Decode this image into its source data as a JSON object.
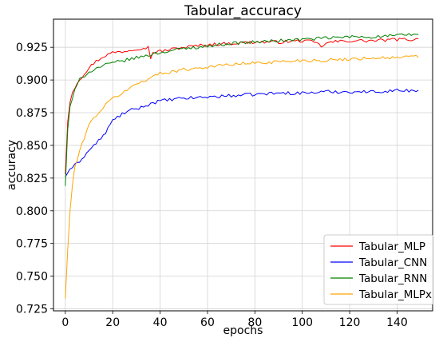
{
  "chart_data": {
    "type": "line",
    "title": "Tabular_accuracy",
    "xlabel": "epochs",
    "ylabel": "accuracy",
    "xlim": [
      -5,
      155
    ],
    "ylim": [
      0.7235,
      0.9465
    ],
    "x_ticks": [
      0,
      20,
      40,
      60,
      80,
      100,
      120,
      140
    ],
    "y_ticks": [
      0.725,
      0.75,
      0.775,
      0.8,
      0.825,
      0.85,
      0.875,
      0.9,
      0.925
    ],
    "grid": true,
    "legend_position": "lower right",
    "epochs": 150,
    "series": [
      {
        "name": "Tabular_MLP",
        "color": "#ff0000",
        "anchors": [
          [
            0,
            0.828
          ],
          [
            1,
            0.868
          ],
          [
            2,
            0.883
          ],
          [
            3,
            0.891
          ],
          [
            5,
            0.898
          ],
          [
            8,
            0.905
          ],
          [
            12,
            0.913
          ],
          [
            16,
            0.918
          ],
          [
            20,
            0.921
          ],
          [
            25,
            0.922
          ],
          [
            30,
            0.924
          ],
          [
            35,
            0.925
          ],
          [
            36,
            0.917
          ],
          [
            37,
            0.921
          ],
          [
            40,
            0.922
          ],
          [
            50,
            0.925
          ],
          [
            60,
            0.927
          ],
          [
            70,
            0.928
          ],
          [
            80,
            0.929
          ],
          [
            90,
            0.929
          ],
          [
            100,
            0.93
          ],
          [
            105,
            0.929
          ],
          [
            108,
            0.926
          ],
          [
            112,
            0.929
          ],
          [
            120,
            0.93
          ],
          [
            130,
            0.93
          ],
          [
            140,
            0.931
          ],
          [
            149,
            0.931
          ]
        ]
      },
      {
        "name": "Tabular_CNN",
        "color": "#0000ff",
        "anchors": [
          [
            0,
            0.826
          ],
          [
            2,
            0.832
          ],
          [
            5,
            0.836
          ],
          [
            8,
            0.842
          ],
          [
            12,
            0.85
          ],
          [
            16,
            0.857
          ],
          [
            18,
            0.863
          ],
          [
            20,
            0.869
          ],
          [
            24,
            0.874
          ],
          [
            28,
            0.877
          ],
          [
            32,
            0.879
          ],
          [
            36,
            0.882
          ],
          [
            40,
            0.884
          ],
          [
            50,
            0.886
          ],
          [
            60,
            0.887
          ],
          [
            70,
            0.888
          ],
          [
            80,
            0.889
          ],
          [
            90,
            0.89
          ],
          [
            100,
            0.89
          ],
          [
            110,
            0.891
          ],
          [
            120,
            0.891
          ],
          [
            130,
            0.891
          ],
          [
            140,
            0.892
          ],
          [
            149,
            0.892
          ]
        ]
      },
      {
        "name": "Tabular_RNN",
        "color": "#008000",
        "anchors": [
          [
            0,
            0.819
          ],
          [
            1,
            0.862
          ],
          [
            2,
            0.88
          ],
          [
            4,
            0.892
          ],
          [
            6,
            0.9
          ],
          [
            9,
            0.905
          ],
          [
            12,
            0.908
          ],
          [
            16,
            0.911
          ],
          [
            20,
            0.913
          ],
          [
            25,
            0.915
          ],
          [
            30,
            0.917
          ],
          [
            35,
            0.919
          ],
          [
            40,
            0.921
          ],
          [
            50,
            0.924
          ],
          [
            60,
            0.926
          ],
          [
            70,
            0.928
          ],
          [
            80,
            0.929
          ],
          [
            90,
            0.93
          ],
          [
            100,
            0.931
          ],
          [
            110,
            0.932
          ],
          [
            120,
            0.933
          ],
          [
            130,
            0.933
          ],
          [
            140,
            0.934
          ],
          [
            149,
            0.935
          ]
        ]
      },
      {
        "name": "Tabular_MLPx",
        "color": "#ffa500",
        "anchors": [
          [
            0,
            0.733
          ],
          [
            1,
            0.77
          ],
          [
            2,
            0.8
          ],
          [
            3,
            0.82
          ],
          [
            4,
            0.833
          ],
          [
            6,
            0.845
          ],
          [
            8,
            0.856
          ],
          [
            10,
            0.866
          ],
          [
            13,
            0.873
          ],
          [
            16,
            0.879
          ],
          [
            20,
            0.886
          ],
          [
            25,
            0.891
          ],
          [
            30,
            0.897
          ],
          [
            35,
            0.901
          ],
          [
            40,
            0.905
          ],
          [
            50,
            0.908
          ],
          [
            60,
            0.91
          ],
          [
            70,
            0.912
          ],
          [
            80,
            0.913
          ],
          [
            90,
            0.914
          ],
          [
            100,
            0.915
          ],
          [
            110,
            0.915
          ],
          [
            120,
            0.916
          ],
          [
            130,
            0.917
          ],
          [
            140,
            0.917
          ],
          [
            149,
            0.918
          ]
        ]
      }
    ]
  }
}
